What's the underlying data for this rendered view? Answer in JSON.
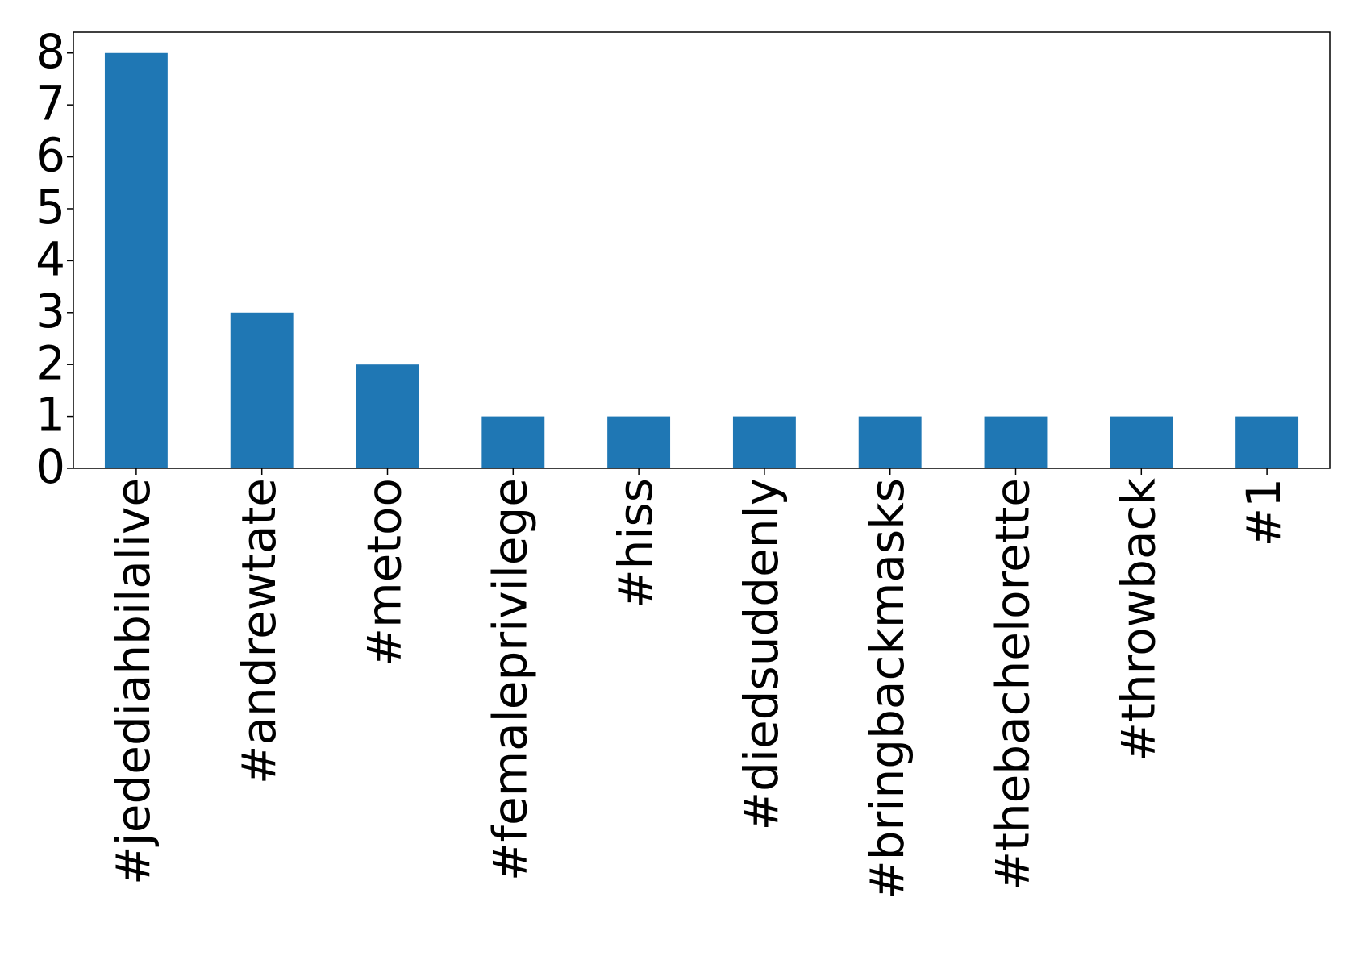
{
  "chart_data": {
    "type": "bar",
    "categories": [
      "#jedediahbilalive",
      "#andrewtate",
      "#metoo",
      "#femaleprivilege",
      "#hiss",
      "#diedsuddenly",
      "#bringbackmasks",
      "#thebachelorette",
      "#throwback",
      "#1"
    ],
    "values": [
      8,
      3,
      2,
      1,
      1,
      1,
      1,
      1,
      1,
      1
    ],
    "color": "#1f77b4",
    "ylim": [
      0,
      8.4
    ],
    "yticks": [
      0,
      1,
      2,
      3,
      4,
      5,
      6,
      7,
      8
    ],
    "grid": false
  }
}
